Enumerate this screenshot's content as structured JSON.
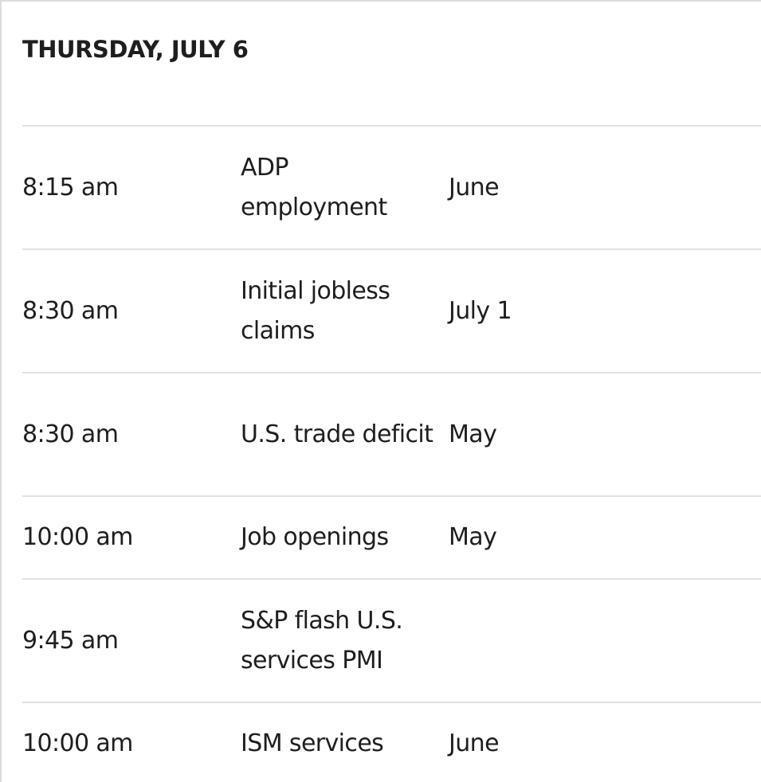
{
  "day_header": "THURSDAY, JULY 6",
  "rows": [
    {
      "time": "8:15 am",
      "event": "ADP employment",
      "period": "June"
    },
    {
      "time": "8:30 am",
      "event": "Initial jobless claims",
      "period": "July 1"
    },
    {
      "time": "8:30 am",
      "event": "U.S. trade deficit",
      "period": "May"
    },
    {
      "time": "10:00 am",
      "event": "Job openings",
      "period": "May"
    },
    {
      "time": "9:45 am",
      "event": "S&P flash U.S. services PMI",
      "period": ""
    },
    {
      "time": "10:00 am",
      "event": "ISM services",
      "period": "June"
    }
  ]
}
